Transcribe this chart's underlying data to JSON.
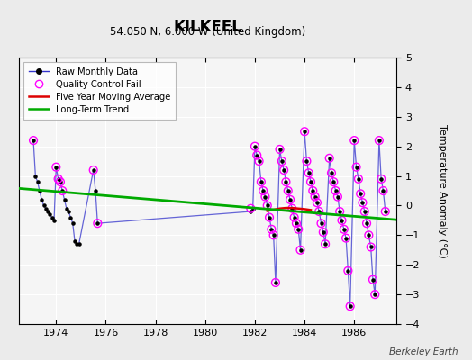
{
  "title": "KILKEEL",
  "subtitle": "54.050 N, 6.000 W (United Kingdom)",
  "ylabel": "Temperature Anomaly (°C)",
  "watermark": "Berkeley Earth",
  "xlim": [
    1972.5,
    1987.7
  ],
  "ylim": [
    -4,
    5
  ],
  "yticks": [
    -4,
    -3,
    -2,
    -1,
    0,
    1,
    2,
    3,
    4,
    5
  ],
  "xticks": [
    1974,
    1976,
    1978,
    1980,
    1982,
    1984,
    1986
  ],
  "bg_color": "#ebebeb",
  "plot_bg_color": "#f5f5f5",
  "raw_x": [
    1973.083,
    1973.167,
    1973.25,
    1973.333,
    1973.417,
    1973.5,
    1973.583,
    1973.667,
    1973.75,
    1973.833,
    1973.917,
    1974.0,
    1974.083,
    1974.167,
    1974.25,
    1974.333,
    1974.417,
    1974.5,
    1974.583,
    1974.667,
    1974.75,
    1974.833,
    1974.917,
    1975.5,
    1975.583,
    1975.667,
    1981.833,
    1981.917,
    1982.0,
    1982.083,
    1982.167,
    1982.25,
    1982.333,
    1982.417,
    1982.5,
    1982.583,
    1982.667,
    1982.75,
    1982.833,
    1983.0,
    1983.083,
    1983.167,
    1983.25,
    1983.333,
    1983.417,
    1983.5,
    1983.583,
    1983.667,
    1983.75,
    1983.833,
    1984.0,
    1984.083,
    1984.167,
    1984.25,
    1984.333,
    1984.417,
    1984.5,
    1984.583,
    1984.667,
    1984.75,
    1984.833,
    1985.0,
    1985.083,
    1985.167,
    1985.25,
    1985.333,
    1985.417,
    1985.5,
    1985.583,
    1985.667,
    1985.75,
    1985.833,
    1986.0,
    1986.083,
    1986.167,
    1986.25,
    1986.333,
    1986.417,
    1986.5,
    1986.583,
    1986.667,
    1986.75,
    1986.833,
    1987.0,
    1987.083,
    1987.167,
    1987.25
  ],
  "raw_y": [
    2.2,
    1.0,
    0.8,
    0.5,
    0.2,
    0.0,
    -0.1,
    -0.2,
    -0.3,
    -0.4,
    -0.5,
    1.3,
    0.9,
    0.8,
    0.5,
    0.2,
    -0.1,
    -0.2,
    -0.4,
    -0.6,
    -1.2,
    -1.3,
    -1.3,
    1.2,
    0.5,
    -0.6,
    -0.2,
    -0.1,
    2.0,
    1.7,
    1.5,
    0.8,
    0.5,
    0.3,
    0.0,
    -0.4,
    -0.8,
    -1.0,
    -2.6,
    1.9,
    1.5,
    1.2,
    0.8,
    0.5,
    0.2,
    -0.1,
    -0.4,
    -0.6,
    -0.8,
    -1.5,
    2.5,
    1.5,
    1.1,
    0.8,
    0.5,
    0.3,
    0.1,
    -0.2,
    -0.6,
    -0.9,
    -1.3,
    1.6,
    1.1,
    0.8,
    0.5,
    0.3,
    -0.2,
    -0.5,
    -0.8,
    -1.1,
    -2.2,
    -3.4,
    2.2,
    1.3,
    0.9,
    0.4,
    0.1,
    -0.2,
    -0.6,
    -1.0,
    -1.4,
    -2.5,
    -3.0,
    2.2,
    0.9,
    0.5,
    -0.2
  ],
  "qc_x": [
    1973.083,
    1974.0,
    1974.083,
    1974.167,
    1974.25,
    1975.5,
    1975.667,
    1981.833,
    1982.0,
    1982.083,
    1982.167,
    1982.25,
    1982.333,
    1982.417,
    1982.5,
    1982.583,
    1982.667,
    1982.75,
    1982.833,
    1983.0,
    1983.083,
    1983.167,
    1983.25,
    1983.333,
    1983.417,
    1983.5,
    1983.583,
    1983.667,
    1983.75,
    1983.833,
    1984.0,
    1984.083,
    1984.167,
    1984.25,
    1984.333,
    1984.417,
    1984.5,
    1984.583,
    1984.667,
    1984.75,
    1984.833,
    1985.0,
    1985.083,
    1985.167,
    1985.25,
    1985.333,
    1985.417,
    1985.5,
    1985.583,
    1985.667,
    1985.75,
    1985.833,
    1986.0,
    1986.083,
    1986.167,
    1986.25,
    1986.333,
    1986.417,
    1986.5,
    1986.583,
    1986.667,
    1986.75,
    1986.833,
    1987.0,
    1987.083,
    1987.167,
    1987.25
  ],
  "qc_y": [
    2.2,
    1.3,
    0.9,
    0.8,
    0.5,
    1.2,
    -0.6,
    -0.1,
    2.0,
    1.7,
    1.5,
    0.8,
    0.5,
    0.3,
    0.0,
    -0.4,
    -0.8,
    -1.0,
    -2.6,
    1.9,
    1.5,
    1.2,
    0.8,
    0.5,
    0.2,
    -0.1,
    -0.4,
    -0.6,
    -0.8,
    -1.5,
    2.5,
    1.5,
    1.1,
    0.8,
    0.5,
    0.3,
    0.1,
    -0.2,
    -0.6,
    -0.9,
    -1.3,
    1.6,
    1.1,
    0.8,
    0.5,
    0.3,
    -0.2,
    -0.5,
    -0.8,
    -1.1,
    -2.2,
    -3.4,
    2.2,
    1.3,
    0.9,
    0.4,
    0.1,
    -0.2,
    -0.6,
    -1.0,
    -1.4,
    -2.5,
    -3.0,
    2.2,
    0.9,
    0.5,
    -0.2
  ],
  "moving_avg_x": [
    1982.5,
    1983.0,
    1983.25,
    1983.5,
    1983.75,
    1984.0,
    1984.25
  ],
  "moving_avg_y": [
    -0.18,
    -0.1,
    -0.08,
    -0.08,
    -0.1,
    -0.12,
    -0.15
  ],
  "trend_x": [
    1972.5,
    1987.7
  ],
  "trend_y": [
    0.58,
    -0.48
  ],
  "line_color": "#3333cc",
  "line_alpha": 0.75,
  "dot_color": "#000000",
  "qc_color": "#ff00ff",
  "ma_color": "#dd0000",
  "trend_color": "#00aa00",
  "legend_loc": "upper left"
}
